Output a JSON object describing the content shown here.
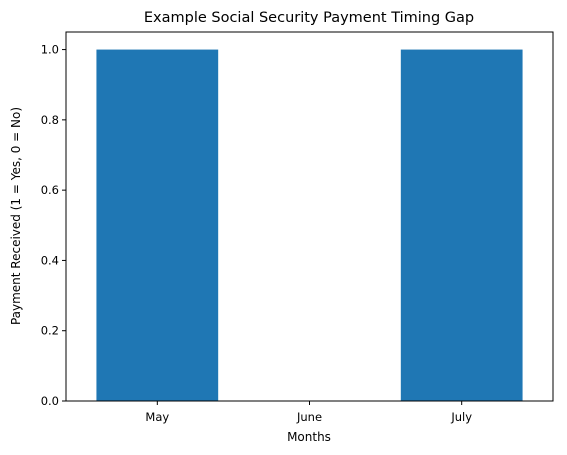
{
  "chart_data": {
    "type": "bar",
    "title": "Example Social Security Payment Timing Gap",
    "xlabel": "Months",
    "ylabel": "Payment Received (1 = Yes, 0 = No)",
    "categories": [
      "May",
      "June",
      "July"
    ],
    "values": [
      1,
      0,
      1
    ],
    "ylim": [
      0,
      1.05
    ],
    "yticks": [
      0.0,
      0.2,
      0.4,
      0.6,
      0.8,
      1.0
    ],
    "ytick_labels": [
      "0.0",
      "0.2",
      "0.4",
      "0.6",
      "0.8",
      "1.0"
    ],
    "bar_color": "#1f77b4",
    "grid": false,
    "legend": "none"
  }
}
